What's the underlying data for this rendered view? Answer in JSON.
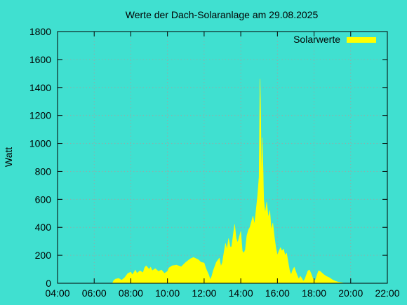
{
  "chart_data": {
    "type": "area",
    "title": "Werte der Dach-Solaranlage am 29.08.2025",
    "xlabel": "",
    "ylabel": "Watt",
    "x_ticks": [
      "04:00",
      "06:00",
      "08:00",
      "10:00",
      "12:00",
      "14:00",
      "16:00",
      "18:00",
      "20:00",
      "22:00"
    ],
    "xlim": [
      "04:00",
      "22:00"
    ],
    "ylim": [
      0,
      1800
    ],
    "y_ticks": [
      0,
      200,
      400,
      600,
      800,
      1000,
      1200,
      1400,
      1600,
      1800
    ],
    "grid": true,
    "legend_position": "top-right",
    "series": [
      {
        "name": "Solarwerte",
        "color": "#ffff00",
        "points": [
          [
            "07:00",
            0
          ],
          [
            "07:04",
            20
          ],
          [
            "07:10",
            30
          ],
          [
            "07:20",
            35
          ],
          [
            "07:30",
            22
          ],
          [
            "07:40",
            40
          ],
          [
            "07:50",
            70
          ],
          [
            "08:00",
            80
          ],
          [
            "08:05",
            60
          ],
          [
            "08:15",
            95
          ],
          [
            "08:20",
            70
          ],
          [
            "08:30",
            90
          ],
          [
            "08:40",
            75
          ],
          [
            "08:45",
            110
          ],
          [
            "08:50",
            125
          ],
          [
            "09:00",
            100
          ],
          [
            "09:05",
            115
          ],
          [
            "09:10",
            90
          ],
          [
            "09:20",
            105
          ],
          [
            "09:30",
            85
          ],
          [
            "09:40",
            95
          ],
          [
            "09:50",
            70
          ],
          [
            "10:00",
            85
          ],
          [
            "10:05",
            110
          ],
          [
            "10:15",
            125
          ],
          [
            "10:30",
            130
          ],
          [
            "10:45",
            118
          ],
          [
            "11:00",
            150
          ],
          [
            "11:15",
            175
          ],
          [
            "11:25",
            185
          ],
          [
            "11:40",
            170
          ],
          [
            "11:50",
            150
          ],
          [
            "12:00",
            145
          ],
          [
            "12:05",
            110
          ],
          [
            "12:10",
            85
          ],
          [
            "12:15",
            60
          ],
          [
            "12:20",
            25
          ],
          [
            "12:25",
            50
          ],
          [
            "12:30",
            90
          ],
          [
            "12:40",
            150
          ],
          [
            "12:50",
            180
          ],
          [
            "12:55",
            120
          ],
          [
            "13:00",
            150
          ],
          [
            "13:05",
            220
          ],
          [
            "13:10",
            285
          ],
          [
            "13:15",
            240
          ],
          [
            "13:20",
            320
          ],
          [
            "13:25",
            260
          ],
          [
            "13:30",
            260
          ],
          [
            "13:35",
            340
          ],
          [
            "13:40",
            420
          ],
          [
            "13:45",
            320
          ],
          [
            "13:50",
            290
          ],
          [
            "13:55",
            330
          ],
          [
            "14:00",
            370
          ],
          [
            "14:05",
            230
          ],
          [
            "14:10",
            215
          ],
          [
            "14:15",
            240
          ],
          [
            "14:20",
            340
          ],
          [
            "14:25",
            380
          ],
          [
            "14:30",
            400
          ],
          [
            "14:35",
            440
          ],
          [
            "14:40",
            480
          ],
          [
            "14:45",
            420
          ],
          [
            "14:50",
            520
          ],
          [
            "14:55",
            620
          ],
          [
            "15:00",
            760
          ],
          [
            "15:03",
            1460
          ],
          [
            "15:05",
            1250
          ],
          [
            "15:08",
            700
          ],
          [
            "15:10",
            1040
          ],
          [
            "15:13",
            820
          ],
          [
            "15:15",
            600
          ],
          [
            "15:20",
            500
          ],
          [
            "15:25",
            580
          ],
          [
            "15:30",
            470
          ],
          [
            "15:35",
            520
          ],
          [
            "15:40",
            380
          ],
          [
            "15:45",
            430
          ],
          [
            "15:50",
            330
          ],
          [
            "15:55",
            250
          ],
          [
            "16:00",
            200
          ],
          [
            "16:05",
            230
          ],
          [
            "16:10",
            255
          ],
          [
            "16:15",
            230
          ],
          [
            "16:20",
            245
          ],
          [
            "16:25",
            200
          ],
          [
            "16:30",
            215
          ],
          [
            "16:35",
            150
          ],
          [
            "16:40",
            90
          ],
          [
            "16:45",
            60
          ],
          [
            "16:50",
            95
          ],
          [
            "16:55",
            115
          ],
          [
            "17:00",
            85
          ],
          [
            "17:05",
            55
          ],
          [
            "17:10",
            30
          ],
          [
            "17:15",
            50
          ],
          [
            "17:20",
            35
          ],
          [
            "17:25",
            15
          ],
          [
            "17:30",
            30
          ],
          [
            "17:40",
            90
          ],
          [
            "17:45",
            95
          ],
          [
            "17:50",
            70
          ],
          [
            "17:55",
            40
          ],
          [
            "18:00",
            20
          ],
          [
            "18:05",
            25
          ],
          [
            "18:10",
            60
          ],
          [
            "18:15",
            90
          ],
          [
            "18:20",
            85
          ],
          [
            "18:30",
            65
          ],
          [
            "18:40",
            50
          ],
          [
            "18:50",
            40
          ],
          [
            "19:00",
            25
          ],
          [
            "19:10",
            15
          ],
          [
            "19:20",
            8
          ],
          [
            "19:30",
            4
          ],
          [
            "19:40",
            0
          ]
        ]
      }
    ]
  }
}
